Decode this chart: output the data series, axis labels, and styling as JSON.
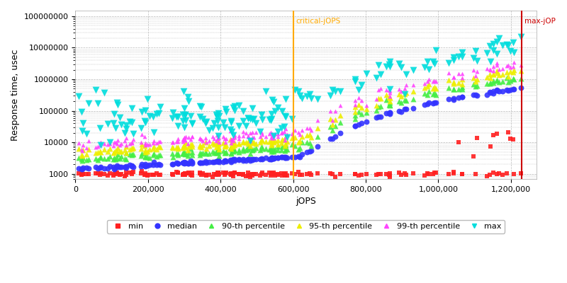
{
  "xlabel": "jOPS",
  "ylabel": "Response time, usec",
  "critical_jops": 600000,
  "max_jops": 1230000,
  "xlim": [
    0,
    1270000
  ],
  "ylim_log": [
    700,
    150000000
  ],
  "background_color": "#ffffff",
  "grid_color": "#bbbbbb",
  "series": {
    "min": {
      "color": "#ff2020",
      "marker": "s",
      "markersize": 3,
      "label": "min"
    },
    "median": {
      "color": "#3333ff",
      "marker": "o",
      "markersize": 4,
      "label": "median"
    },
    "p90": {
      "color": "#44ee44",
      "marker": "^",
      "markersize": 4,
      "label": "90-th percentile"
    },
    "p95": {
      "color": "#eeee00",
      "marker": "^",
      "markersize": 4,
      "label": "95-th percentile"
    },
    "p99": {
      "color": "#ff44ff",
      "marker": "^",
      "markersize": 3,
      "label": "99-th percentile"
    },
    "max": {
      "color": "#00dddd",
      "marker": "v",
      "markersize": 5,
      "label": "max"
    }
  },
  "critical_line_color": "#ffaa00",
  "max_line_color": "#cc0000",
  "legend_fontsize": 8,
  "tick_fontsize": 8,
  "label_fontsize": 9
}
